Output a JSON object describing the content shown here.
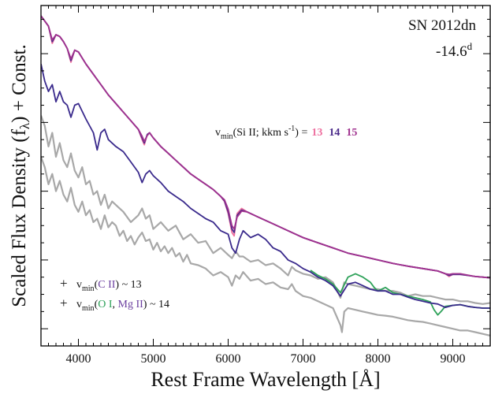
{
  "chart_data": {
    "type": "line",
    "xlabel": "Rest Frame Wavelength [Å]",
    "ylabel_main": "Scaled Flux Density (f",
    "ylabel_sub": "λ",
    "ylabel_tail": ") + Const.",
    "xlim": [
      3500,
      9500
    ],
    "x_ticks": [
      4000,
      5000,
      6000,
      7000,
      8000,
      9000
    ],
    "y_ticks_shown": false,
    "grid": false,
    "annotations": {
      "object": "SN 2012dn",
      "epoch": "-14.6",
      "epoch_sup": "d",
      "vmin_si_prefix": "v",
      "vmin_si_sub": "min",
      "vmin_si_label": "(Si II; kkm s",
      "vmin_si_sup": "-1",
      "vmin_si_close": ") =",
      "vmin_si_values": [
        "13",
        "14",
        "15"
      ],
      "vmin_si_colors": [
        "#ee6f9f",
        "#4b2a8a",
        "#a0328f"
      ],
      "legend_row1_marker": "+",
      "legend_row1_prefix": "v",
      "legend_row1_sub": "min",
      "legend_row1_open": "(",
      "legend_row1_ion": "C II",
      "legend_row1_close": ") ~ 13",
      "legend_row1_ion_color": "#6b3fa0",
      "legend_row2_marker": "+",
      "legend_row2_prefix": "v",
      "legend_row2_sub": "min",
      "legend_row2_open": "(",
      "legend_row2_ion_a": "O I",
      "legend_row2_comma": ", ",
      "legend_row2_ion_b": "Mg II",
      "legend_row2_close": ") ~ 14",
      "legend_row2_ion_a_color": "#2fa25a",
      "legend_row2_ion_b_color": "#6b3fa0"
    },
    "series": [
      {
        "group": "top_observed",
        "color": "#a8a8a8",
        "x": [
          3500,
          3550,
          3600,
          3650,
          3700,
          3750,
          3800,
          3850,
          3900,
          3950,
          4000,
          4050,
          4100,
          4150,
          4200,
          4250,
          4300,
          4350,
          4400,
          4450,
          4500,
          4600,
          4700,
          4800,
          4850,
          4900,
          4950,
          5000,
          5100,
          5200,
          5300,
          5400,
          5500,
          5600,
          5700,
          5800,
          5900,
          6000,
          6050,
          6100,
          6150,
          6200,
          6300,
          6400,
          6500,
          6600,
          6700,
          6800,
          6850,
          6900,
          7000,
          7100,
          7200,
          7300,
          7400,
          7500,
          7550,
          7600,
          7700,
          7800,
          7900,
          8000,
          8100,
          8200,
          8300,
          8400,
          8500,
          8600,
          8700,
          8800,
          8900,
          9000,
          9100,
          9200,
          9300,
          9400,
          9500
        ],
        "y": [
          6.2,
          5.9,
          5.3,
          5.7,
          5.0,
          5.4,
          4.9,
          4.7,
          5.1,
          4.6,
          4.4,
          4.7,
          4.2,
          4.3,
          3.9,
          4.0,
          3.6,
          3.9,
          3.5,
          3.7,
          3.6,
          3.4,
          3.1,
          3.3,
          3.5,
          3.2,
          3.3,
          2.9,
          3.1,
          2.85,
          3.0,
          2.6,
          2.75,
          2.5,
          2.55,
          2.2,
          2.35,
          2.15,
          2.05,
          2.25,
          2.1,
          2.1,
          1.95,
          2.0,
          1.85,
          1.9,
          1.75,
          1.55,
          1.8,
          1.7,
          1.6,
          1.55,
          1.45,
          1.5,
          1.35,
          0.9,
          1.35,
          1.3,
          1.25,
          1.2,
          1.15,
          1.15,
          1.1,
          1.1,
          1.05,
          0.95,
          1.0,
          0.95,
          0.95,
          0.9,
          0.85,
          0.85,
          0.8,
          0.8,
          0.75,
          0.72,
          0.75
        ]
      },
      {
        "group": "top_model",
        "name": "13",
        "color": "#ee6f9f",
        "x": [
          3500,
          3600,
          3650,
          3700,
          3750,
          3800,
          3850,
          3900,
          3950,
          4000,
          4100,
          4200,
          4300,
          4400,
          4500,
          4600,
          4700,
          4800,
          4850,
          4880,
          4920,
          4950,
          5000,
          5100,
          5200,
          5300,
          5400,
          5500,
          5600,
          5700,
          5800,
          5900,
          5950,
          6000,
          6050,
          6080,
          6120,
          6180,
          6250,
          6400,
          6600,
          6800,
          7000,
          7200,
          7400,
          7600,
          7800,
          8000,
          8200,
          8400,
          8600,
          8800,
          8900,
          8950,
          9000,
          9100,
          9200,
          9300,
          9400,
          9500
        ],
        "y": [
          9.1,
          8.8,
          8.3,
          8.55,
          8.5,
          8.35,
          8.15,
          7.75,
          8.1,
          8.05,
          7.7,
          7.4,
          7.1,
          6.8,
          6.55,
          6.3,
          6.05,
          5.8,
          5.5,
          5.35,
          5.65,
          5.7,
          5.55,
          5.3,
          5.1,
          4.9,
          4.7,
          4.5,
          4.35,
          4.2,
          4.05,
          3.85,
          3.7,
          3.35,
          2.8,
          2.7,
          3.35,
          3.5,
          3.4,
          3.25,
          3.05,
          2.85,
          2.65,
          2.5,
          2.35,
          2.2,
          2.1,
          2.0,
          1.9,
          1.82,
          1.75,
          1.68,
          1.6,
          1.52,
          1.58,
          1.58,
          1.55,
          1.52,
          1.5,
          1.48
        ]
      },
      {
        "group": "top_model",
        "name": "14",
        "color": "#4b2a8a",
        "x": [
          3500,
          3600,
          3650,
          3700,
          3750,
          3800,
          3850,
          3900,
          3950,
          4000,
          4100,
          4200,
          4300,
          4400,
          4500,
          4600,
          4700,
          4800,
          4850,
          4880,
          4920,
          4950,
          5000,
          5100,
          5200,
          5300,
          5400,
          5500,
          5600,
          5700,
          5800,
          5900,
          5950,
          6000,
          6050,
          6080,
          6120,
          6180,
          6250,
          6400,
          6600,
          6800,
          7000,
          7200,
          7400,
          7600,
          7800,
          8000,
          8200,
          8400,
          8600,
          8800,
          8900,
          8950,
          9000,
          9100,
          9200,
          9300,
          9400,
          9500
        ],
        "y": [
          9.1,
          8.8,
          8.35,
          8.55,
          8.5,
          8.35,
          8.15,
          7.8,
          8.1,
          8.05,
          7.7,
          7.4,
          7.1,
          6.8,
          6.55,
          6.3,
          6.05,
          5.8,
          5.55,
          5.4,
          5.65,
          5.7,
          5.55,
          5.3,
          5.1,
          4.9,
          4.7,
          4.5,
          4.35,
          4.2,
          4.05,
          3.85,
          3.72,
          3.4,
          2.9,
          2.8,
          3.3,
          3.45,
          3.4,
          3.25,
          3.05,
          2.85,
          2.65,
          2.5,
          2.35,
          2.2,
          2.1,
          2.0,
          1.9,
          1.82,
          1.75,
          1.68,
          1.6,
          1.55,
          1.58,
          1.58,
          1.55,
          1.52,
          1.5,
          1.48
        ]
      },
      {
        "group": "top_model",
        "name": "15",
        "color": "#a0328f",
        "x": [
          3500,
          3600,
          3650,
          3700,
          3750,
          3800,
          3850,
          3900,
          3950,
          4000,
          4100,
          4200,
          4300,
          4400,
          4500,
          4600,
          4700,
          4800,
          4850,
          4880,
          4920,
          4950,
          5000,
          5100,
          5200,
          5300,
          5400,
          5500,
          5600,
          5700,
          5800,
          5900,
          5950,
          6000,
          6050,
          6080,
          6120,
          6180,
          6250,
          6400,
          6600,
          6800,
          7000,
          7200,
          7400,
          7600,
          7800,
          8000,
          8200,
          8400,
          8600,
          8800,
          8900,
          8950,
          9000,
          9100,
          9200,
          9300,
          9400,
          9500
        ],
        "y": [
          9.1,
          8.8,
          8.4,
          8.55,
          8.5,
          8.35,
          8.15,
          7.85,
          8.1,
          8.05,
          7.7,
          7.4,
          7.1,
          6.8,
          6.55,
          6.3,
          6.05,
          5.8,
          5.6,
          5.45,
          5.62,
          5.7,
          5.55,
          5.3,
          5.1,
          4.9,
          4.7,
          4.5,
          4.35,
          4.2,
          4.05,
          3.85,
          3.75,
          3.48,
          3.0,
          2.9,
          3.25,
          3.42,
          3.4,
          3.25,
          3.05,
          2.85,
          2.65,
          2.5,
          2.35,
          2.2,
          2.1,
          2.0,
          1.9,
          1.82,
          1.75,
          1.68,
          1.6,
          1.58,
          1.6,
          1.6,
          1.56,
          1.52,
          1.5,
          1.48
        ]
      },
      {
        "group": "middle_model",
        "color": "#3a2a8c",
        "x": [
          3500,
          3550,
          3600,
          3650,
          3700,
          3750,
          3800,
          3850,
          3900,
          3950,
          4000,
          4100,
          4200,
          4250,
          4300,
          4350,
          4400,
          4500,
          4600,
          4700,
          4800,
          4850,
          4900,
          4950,
          5000,
          5100,
          5200,
          5300,
          5400,
          5500,
          5600,
          5700,
          5800,
          5900,
          6000,
          6050,
          6100,
          6150,
          6200,
          6300,
          6400,
          6500,
          6600,
          6700,
          6800,
          6900,
          7000,
          7100,
          7200,
          7300,
          7400,
          7500,
          7600,
          7700,
          7800,
          7900,
          8000,
          8100,
          8200,
          8300,
          8400,
          8500,
          8600,
          8700,
          8800,
          8900,
          9000,
          9100,
          9200,
          9300,
          9400,
          9500
        ],
        "y": [
          7.7,
          7.2,
          6.9,
          7.1,
          6.6,
          6.9,
          6.6,
          6.5,
          6.15,
          6.5,
          6.55,
          6.1,
          5.7,
          5.2,
          5.7,
          5.8,
          5.5,
          5.3,
          5.15,
          4.85,
          4.55,
          4.25,
          4.5,
          4.6,
          4.45,
          4.25,
          4.0,
          3.85,
          3.7,
          3.5,
          3.35,
          3.2,
          3.1,
          2.85,
          2.75,
          2.35,
          2.2,
          2.6,
          2.85,
          2.65,
          2.75,
          2.6,
          2.35,
          2.25,
          2.0,
          1.9,
          1.75,
          1.65,
          1.5,
          1.4,
          1.25,
          0.95,
          1.3,
          1.35,
          1.25,
          1.15,
          1.1,
          1.1,
          1.0,
          1.0,
          0.92,
          0.85,
          0.8,
          0.75,
          0.72,
          0.62,
          0.68,
          0.7,
          0.65,
          0.62,
          0.6,
          0.6
        ]
      },
      {
        "group": "middle_model_alt",
        "color": "#2fa25a",
        "x": [
          7100,
          7200,
          7300,
          7400,
          7500,
          7600,
          7700,
          7800,
          7900,
          7950,
          8000,
          8100,
          8200,
          8300,
          8400,
          8500,
          8600,
          8700,
          8750,
          8800,
          8850,
          8900,
          9000,
          9100,
          9200,
          9300,
          9400,
          9500
        ],
        "y": [
          1.7,
          1.55,
          1.45,
          1.3,
          1.05,
          1.5,
          1.6,
          1.5,
          1.35,
          1.2,
          1.1,
          1.2,
          1.05,
          1.0,
          0.95,
          0.9,
          0.85,
          0.78,
          0.55,
          0.4,
          0.52,
          0.65,
          0.68,
          0.7,
          0.65,
          0.62,
          0.6,
          0.6
        ]
      },
      {
        "group": "lower_observed",
        "color": "#a8a8a8",
        "x": [
          3500,
          3550,
          3600,
          3650,
          3700,
          3750,
          3800,
          3850,
          3900,
          3950,
          4000,
          4050,
          4100,
          4150,
          4200,
          4250,
          4300,
          4350,
          4400,
          4450,
          4500,
          4550,
          4600,
          4650,
          4700,
          4750,
          4800,
          4850,
          4900,
          4950,
          5000,
          5050,
          5100,
          5150,
          5200,
          5250,
          5300,
          5350,
          5400,
          5450,
          5500,
          5600,
          5700,
          5800,
          5900,
          6000,
          6050,
          6100,
          6150,
          6200,
          6300,
          6400,
          6500,
          6600,
          6700,
          6800,
          6850,
          6900,
          7000,
          7100,
          7200,
          7300,
          7400,
          7500,
          7520,
          7550,
          7600,
          7700,
          7800,
          7900,
          8000,
          8100,
          8200,
          8300,
          8400,
          8500,
          8600,
          8700,
          8800,
          8900,
          9000,
          9100,
          9200,
          9300,
          9400,
          9500
        ],
        "y": [
          5.0,
          4.7,
          4.2,
          4.5,
          4.0,
          4.3,
          3.9,
          3.7,
          4.1,
          3.6,
          3.4,
          3.7,
          3.3,
          3.45,
          3.1,
          3.2,
          2.9,
          3.3,
          2.95,
          3.1,
          3.0,
          2.7,
          2.85,
          2.55,
          2.7,
          2.45,
          2.65,
          2.8,
          2.55,
          2.6,
          2.3,
          2.5,
          2.25,
          2.4,
          2.2,
          2.35,
          2.1,
          2.2,
          1.95,
          2.15,
          1.9,
          1.85,
          1.75,
          1.55,
          1.65,
          1.5,
          1.25,
          1.55,
          1.45,
          1.65,
          1.4,
          1.45,
          1.3,
          1.35,
          1.2,
          1.15,
          1.3,
          1.1,
          0.95,
          0.9,
          0.8,
          0.7,
          0.6,
          0.1,
          -0.1,
          0.5,
          0.6,
          0.55,
          0.5,
          0.45,
          0.4,
          0.38,
          0.35,
          0.3,
          0.25,
          0.22,
          0.2,
          0.15,
          0.1,
          0.05,
          0.0,
          -0.05,
          -0.05,
          -0.1,
          -0.15,
          -0.2
        ]
      }
    ]
  }
}
